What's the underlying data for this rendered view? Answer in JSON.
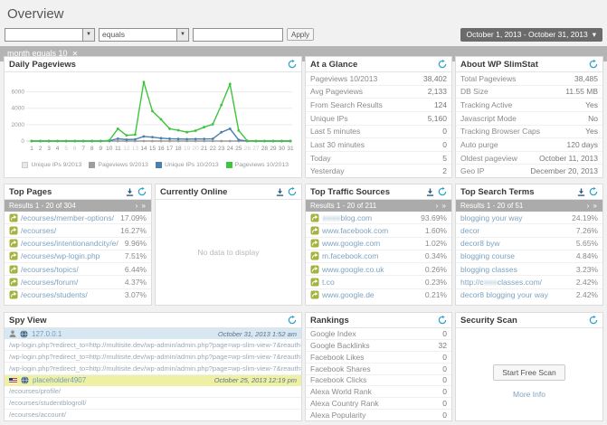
{
  "page": {
    "title": "Overview"
  },
  "ui": {
    "select_arrow": "▼",
    "caret": "▾",
    "close": "✕",
    "pager_next": "› »"
  },
  "filters": {
    "field_select": "",
    "operator_select": "equals",
    "value_input": "",
    "apply": "Apply",
    "date_range": "October 1, 2013 - October 31, 2013",
    "active_filter": "month equals 10"
  },
  "chart_data": {
    "type": "line",
    "title": "Daily Pageviews",
    "xlabel": "",
    "ylabel": "",
    "ylim": [
      0,
      7500
    ],
    "yticks": [
      0,
      2000,
      4000,
      6000
    ],
    "x": [
      1,
      2,
      3,
      4,
      5,
      6,
      7,
      8,
      9,
      10,
      11,
      12,
      13,
      14,
      15,
      16,
      17,
      18,
      19,
      20,
      21,
      22,
      23,
      24,
      25,
      26,
      27,
      28,
      29,
      30,
      31
    ],
    "weekend_days": [
      5,
      6,
      12,
      13,
      19,
      20,
      26,
      27
    ],
    "legend_position": "bottom",
    "grid": true,
    "series": [
      {
        "name": "Unique IPs 9/2013",
        "color": "#e8e8e8",
        "values": [
          0,
          0,
          0,
          0,
          0,
          0,
          0,
          0,
          0,
          0,
          0,
          0,
          0,
          0,
          0,
          0,
          0,
          0,
          0,
          0,
          0,
          0,
          0,
          0,
          0,
          0,
          0,
          0,
          0,
          0,
          0
        ]
      },
      {
        "name": "Pageviews 9/2013",
        "color": "#9e9e9e",
        "values": [
          0,
          0,
          0,
          0,
          0,
          0,
          0,
          0,
          0,
          0,
          0,
          0,
          0,
          0,
          0,
          0,
          0,
          0,
          0,
          0,
          0,
          0,
          0,
          0,
          0,
          0,
          0,
          0,
          0,
          0,
          0
        ]
      },
      {
        "name": "Unique IPs 10/2013",
        "color": "#4a7fae",
        "values": [
          0,
          0,
          0,
          0,
          0,
          0,
          0,
          0,
          0,
          30,
          290,
          180,
          210,
          560,
          480,
          350,
          280,
          255,
          235,
          250,
          260,
          270,
          1080,
          1500,
          140,
          10,
          0,
          0,
          0,
          0,
          0
        ]
      },
      {
        "name": "Pageviews 10/2013",
        "color": "#3ec43e",
        "values": [
          0,
          0,
          0,
          0,
          0,
          0,
          0,
          0,
          0,
          80,
          1500,
          700,
          780,
          7200,
          3650,
          2650,
          1500,
          1320,
          1080,
          1260,
          1700,
          2050,
          4400,
          6950,
          1300,
          40,
          0,
          0,
          0,
          0,
          0
        ]
      }
    ]
  },
  "panels": {
    "daily_pageviews": {
      "title": "Daily Pageviews"
    },
    "at_a_glance": {
      "title": "At a Glance",
      "rows": [
        {
          "label": "Pageviews 10/2013",
          "value": "38,402"
        },
        {
          "label": "Avg Pageviews",
          "value": "2,133"
        },
        {
          "label": "From Search Results",
          "value": "124"
        },
        {
          "label": "Unique IPs",
          "value": "5,160"
        },
        {
          "label": "Last 5 minutes",
          "value": "0"
        },
        {
          "label": "Last 30 minutes",
          "value": "0"
        },
        {
          "label": "Today",
          "value": "5"
        },
        {
          "label": "Yesterday",
          "value": "2"
        }
      ]
    },
    "about": {
      "title": "About WP SlimStat",
      "rows": [
        {
          "label": "Total Pageviews",
          "value": "38,485"
        },
        {
          "label": "DB Size",
          "value": "11.55 MB"
        },
        {
          "label": "Tracking Active",
          "value": "Yes"
        },
        {
          "label": "Javascript Mode",
          "value": "No"
        },
        {
          "label": "Tracking Browser Caps",
          "value": "Yes"
        },
        {
          "label": "Auto purge",
          "value": "120 days"
        },
        {
          "label": "Oldest pageview",
          "value": "October 11, 2013"
        },
        {
          "label": "Geo IP",
          "value": "December 20, 2013"
        }
      ]
    },
    "top_pages": {
      "title": "Top Pages",
      "pagination": "Results 1 - 20 of 304",
      "rows": [
        {
          "icon": "share",
          "label": "/ecourses/member-options/",
          "value": "17.09%"
        },
        {
          "icon": "share",
          "label": "/ecourses/",
          "value": "16.27%"
        },
        {
          "icon": "share",
          "label": "/ecourses/intentionandcity/e/",
          "value": "9.96%"
        },
        {
          "icon": "share",
          "label": "/ecourses/wp-login.php",
          "value": "7.51%"
        },
        {
          "icon": "share",
          "label": "/ecourses/topics/",
          "value": "6.44%"
        },
        {
          "icon": "share",
          "label": "/ecourses/forum/",
          "value": "4.37%"
        },
        {
          "icon": "share",
          "label": "/ecourses/students/",
          "value": "3.07%"
        }
      ]
    },
    "currently_online": {
      "title": "Currently Online",
      "empty": "No data to display"
    },
    "top_traffic": {
      "title": "Top Traffic Sources",
      "pagination": "Results 1 - 20 of 211",
      "rows": [
        {
          "icon": "share",
          "redacted": "●●●●",
          "label": "blog.com",
          "value": "93.69%"
        },
        {
          "icon": "share",
          "label": "www.facebook.com",
          "value": "1.60%"
        },
        {
          "icon": "share",
          "label": "www.google.com",
          "value": "1.02%"
        },
        {
          "icon": "share",
          "label": "m.facebook.com",
          "value": "0.34%"
        },
        {
          "icon": "share",
          "label": "www.google.co.uk",
          "value": "0.26%"
        },
        {
          "icon": "share",
          "label": "t.co",
          "value": "0.23%"
        },
        {
          "icon": "share",
          "label": "www.google.de",
          "value": "0.21%"
        }
      ]
    },
    "top_search": {
      "title": "Top Search Terms",
      "pagination": "Results 1 - 20 of 51",
      "rows": [
        {
          "label": "blogging your way",
          "value": "24.19%"
        },
        {
          "label": "decor",
          "value": "7.26%"
        },
        {
          "label": "decor8 byw",
          "value": "5.65%"
        },
        {
          "label": "blogging course",
          "value": "4.84%"
        },
        {
          "label": "blogging classes",
          "value": "3.23%"
        },
        {
          "pre": "http://c",
          "redacted": "●●●",
          "label": "classes.com/",
          "value": "2.42%"
        },
        {
          "label": "decor8 blogging your way",
          "value": "2.42%"
        }
      ]
    },
    "spy_view": {
      "title": "Spy View",
      "entries": [
        {
          "kind": "visitor",
          "variant": "blue",
          "icons": [
            "user-icon",
            "globe-icon"
          ],
          "label": "127.0.0.1",
          "time": "October 31, 2013 1:52 am"
        },
        {
          "kind": "page",
          "label": "/wp-login.php?redirect_to=http://multisite.dev/wp-admin/admin.php?page=wp-slim-view-7&reauth=1"
        },
        {
          "kind": "page",
          "label": "/wp-login.php?redirect_to=http://multisite.dev/wp-admin/admin.php?page=wp-slim-view-7&reauth=1"
        },
        {
          "kind": "page",
          "label": "/wp-login.php?redirect_to=http://multisite.dev/wp-admin/admin.php?page=wp-slim-view-7&reauth=1"
        },
        {
          "kind": "visitor",
          "variant": "yellow",
          "icons": [
            "us-flag-icon",
            "globe-icon"
          ],
          "label": "placeholder4907",
          "time": "October 25, 2013 12:19 pm"
        },
        {
          "kind": "page",
          "label": "/ecourses/profile/"
        },
        {
          "kind": "page",
          "label": "/ecourses/studentblogroll/"
        },
        {
          "kind": "page",
          "label": "/ecourses/account/"
        }
      ]
    },
    "rankings": {
      "title": "Rankings",
      "rows": [
        {
          "label": "Google Index",
          "value": "0"
        },
        {
          "label": "Google Backlinks",
          "value": "32"
        },
        {
          "label": "Facebook Likes",
          "value": "0"
        },
        {
          "label": "Facebook Shares",
          "value": "0"
        },
        {
          "label": "Facebook Clicks",
          "value": "0"
        },
        {
          "label": "Alexa World Rank",
          "value": "0"
        },
        {
          "label": "Alexa Country Rank",
          "value": "0"
        },
        {
          "label": "Alexa Popularity",
          "value": "0"
        }
      ]
    },
    "security": {
      "title": "Security Scan",
      "button": "Start Free Scan",
      "link": "More Info"
    }
  }
}
